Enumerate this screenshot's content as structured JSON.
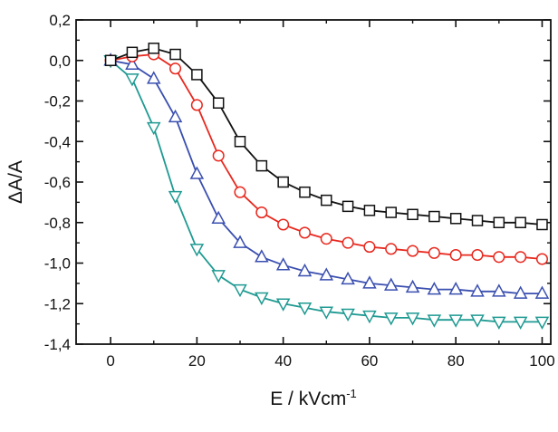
{
  "chart_data": {
    "type": "line",
    "xlabel": "E / kVcm",
    "xlabel_superscript": "-1",
    "ylabel": "ΔA/A",
    "xlim": [
      -8,
      102
    ],
    "ylim": [
      -1.4,
      0.2
    ],
    "x_ticks": [
      0,
      20,
      40,
      60,
      80,
      100
    ],
    "x_tick_labels": [
      "0",
      "20",
      "40",
      "60",
      "80",
      "100"
    ],
    "y_ticks": [
      0.2,
      0.0,
      -0.2,
      -0.4,
      -0.6,
      -0.8,
      -1.0,
      -1.2,
      -1.4
    ],
    "y_tick_labels": [
      "0,2",
      "0,0",
      "-0,2",
      "-0,4",
      "-0,6",
      "-0,8",
      "-1,0",
      "-1,2",
      "-1,4"
    ],
    "grid": false,
    "x": [
      0,
      5,
      10,
      15,
      20,
      25,
      30,
      35,
      40,
      45,
      50,
      55,
      60,
      65,
      70,
      75,
      80,
      85,
      90,
      95,
      100
    ],
    "series": [
      {
        "marker": "square",
        "color": "#111111",
        "values": [
          0.0,
          0.04,
          0.06,
          0.03,
          -0.07,
          -0.21,
          -0.4,
          -0.52,
          -0.6,
          -0.65,
          -0.69,
          -0.72,
          -0.74,
          -0.75,
          -0.76,
          -0.77,
          -0.78,
          -0.79,
          -0.8,
          -0.8,
          -0.81
        ]
      },
      {
        "marker": "circle",
        "color": "#e8281e",
        "values": [
          0.0,
          0.02,
          0.03,
          -0.04,
          -0.22,
          -0.47,
          -0.65,
          -0.75,
          -0.81,
          -0.85,
          -0.88,
          -0.9,
          -0.92,
          -0.93,
          -0.94,
          -0.95,
          -0.96,
          -0.96,
          -0.97,
          -0.97,
          -0.98
        ]
      },
      {
        "marker": "triangle-up",
        "color": "#3a4fb0",
        "values": [
          0.0,
          -0.02,
          -0.09,
          -0.28,
          -0.56,
          -0.78,
          -0.9,
          -0.97,
          -1.01,
          -1.04,
          -1.06,
          -1.08,
          -1.1,
          -1.11,
          -1.12,
          -1.13,
          -1.13,
          -1.14,
          -1.14,
          -1.15,
          -1.15
        ]
      },
      {
        "marker": "triangle-down",
        "color": "#1f9a92",
        "values": [
          0.0,
          -0.09,
          -0.33,
          -0.67,
          -0.93,
          -1.06,
          -1.13,
          -1.17,
          -1.2,
          -1.22,
          -1.24,
          -1.25,
          -1.26,
          -1.27,
          -1.27,
          -1.28,
          -1.28,
          -1.28,
          -1.29,
          -1.29,
          -1.29
        ]
      }
    ]
  }
}
